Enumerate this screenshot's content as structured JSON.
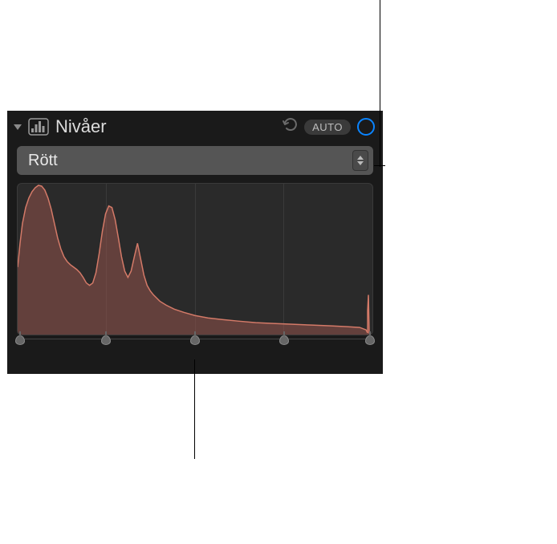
{
  "panel": {
    "title": "Nivåer",
    "auto_label": "AUTO",
    "accent_color": "#0a84ff"
  },
  "dropdown": {
    "selected": "Rött"
  },
  "histogram": {
    "type": "histogram",
    "fill_color": "#a85b52",
    "fill_opacity": 0.45,
    "stroke_color": "#d47a68",
    "stroke_width": 1.5,
    "background_color": "#2a2a2a",
    "grid_color": "#3a3a3a",
    "vertical_divisions": 4,
    "points": [
      [
        0,
        105
      ],
      [
        3,
        75
      ],
      [
        6,
        50
      ],
      [
        10,
        30
      ],
      [
        14,
        18
      ],
      [
        18,
        10
      ],
      [
        22,
        5
      ],
      [
        26,
        2
      ],
      [
        30,
        3
      ],
      [
        34,
        8
      ],
      [
        38,
        18
      ],
      [
        42,
        32
      ],
      [
        46,
        50
      ],
      [
        50,
        68
      ],
      [
        54,
        82
      ],
      [
        58,
        92
      ],
      [
        62,
        98
      ],
      [
        66,
        102
      ],
      [
        70,
        105
      ],
      [
        74,
        108
      ],
      [
        78,
        112
      ],
      [
        82,
        118
      ],
      [
        86,
        125
      ],
      [
        90,
        128
      ],
      [
        94,
        125
      ],
      [
        98,
        112
      ],
      [
        102,
        88
      ],
      [
        106,
        60
      ],
      [
        110,
        38
      ],
      [
        114,
        28
      ],
      [
        118,
        30
      ],
      [
        122,
        45
      ],
      [
        126,
        68
      ],
      [
        130,
        92
      ],
      [
        134,
        110
      ],
      [
        138,
        118
      ],
      [
        142,
        110
      ],
      [
        146,
        92
      ],
      [
        150,
        75
      ],
      [
        154,
        95
      ],
      [
        158,
        115
      ],
      [
        162,
        128
      ],
      [
        166,
        135
      ],
      [
        170,
        140
      ],
      [
        178,
        148
      ],
      [
        186,
        153
      ],
      [
        196,
        158
      ],
      [
        208,
        162
      ],
      [
        222,
        166
      ],
      [
        238,
        169
      ],
      [
        256,
        171
      ],
      [
        276,
        173
      ],
      [
        298,
        175
      ],
      [
        320,
        176
      ],
      [
        344,
        177
      ],
      [
        368,
        178
      ],
      [
        392,
        179
      ],
      [
        412,
        180
      ],
      [
        428,
        181
      ],
      [
        436,
        184
      ],
      [
        438,
        188
      ],
      [
        438,
        160
      ],
      [
        439,
        140
      ],
      [
        440,
        188
      ],
      [
        442,
        188
      ]
    ]
  },
  "sliders": {
    "handle_positions_pct": [
      1,
      25,
      50,
      75,
      99
    ]
  }
}
